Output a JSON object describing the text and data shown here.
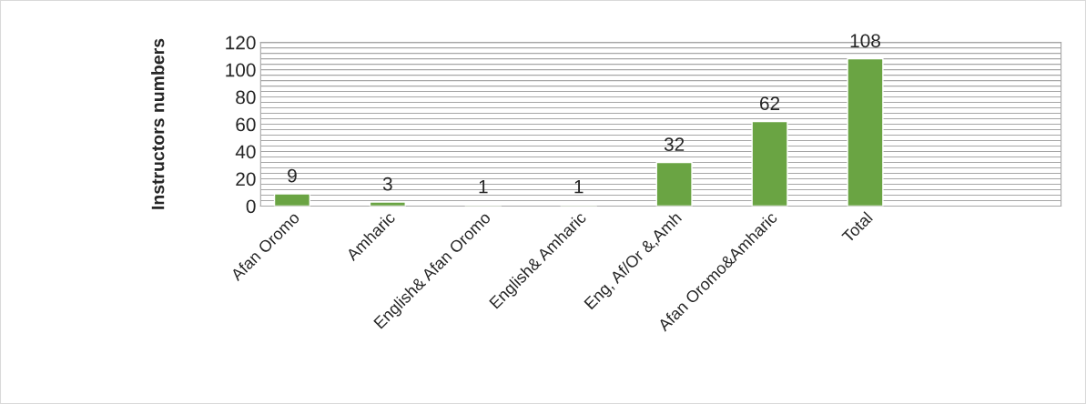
{
  "chart_data": {
    "type": "bar",
    "ylabel": "Instructors numbers",
    "categories": [
      "Afan Oromo",
      "Amharic",
      "English& Afan Oromo",
      "English& Amharic",
      "Eng, Af/Or &,Amh",
      "Afan Oromo&Amharic",
      "Total"
    ],
    "values": [
      9,
      3,
      1,
      1,
      32,
      62,
      108
    ],
    "color": "#6aa443",
    "data_labels": true,
    "ylim": [
      0,
      120
    ],
    "yticks": [
      0,
      {
        "value": 4,
        "label": null
      },
      {
        "value": 8,
        "label": null
      },
      {
        "value": 12,
        "label": null
      },
      {
        "value": 16,
        "label": null
      },
      20,
      {
        "value": 24,
        "label": null
      },
      {
        "value": 28,
        "label": null
      },
      {
        "value": 32,
        "label": null
      },
      {
        "value": 36,
        "label": null
      },
      40,
      {
        "value": 44,
        "label": null
      },
      {
        "value": 48,
        "label": null
      },
      {
        "value": 52,
        "label": null
      },
      {
        "value": 56,
        "label": null
      },
      60,
      {
        "value": 64,
        "label": null
      },
      {
        "value": 68,
        "label": null
      },
      {
        "value": 72,
        "label": null
      },
      {
        "value": 76,
        "label": null
      },
      80,
      {
        "value": 84,
        "label": null
      },
      {
        "value": 88,
        "label": null
      },
      {
        "value": 92,
        "label": null
      },
      {
        "value": 96,
        "label": null
      },
      100,
      {
        "value": 104,
        "label": null
      },
      {
        "value": 108,
        "label": null
      },
      {
        "value": 112,
        "label": null
      },
      {
        "value": 116,
        "label": null
      },
      120
    ],
    "grid": "y",
    "legend": false
  }
}
